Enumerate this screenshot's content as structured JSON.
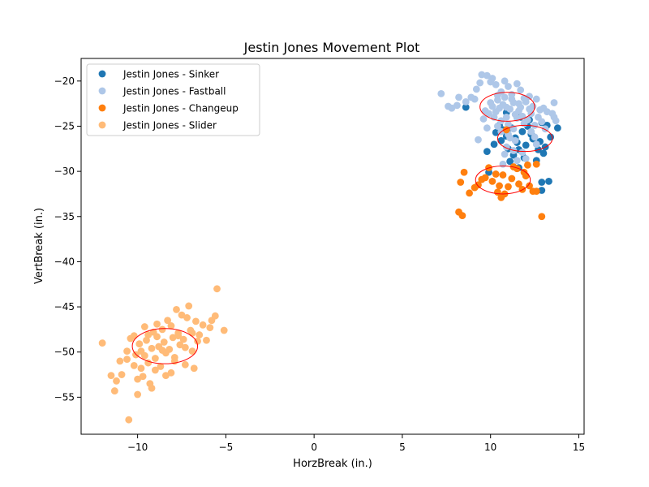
{
  "chart_data": {
    "type": "scatter",
    "title": "Jestin Jones Movement Plot",
    "xlabel": "HorzBreak (in.)",
    "ylabel": "VertBreak (in.)",
    "xlim": [
      -13.2,
      15.3
    ],
    "ylim": [
      -59.1,
      -17.5
    ],
    "xticks": [
      -10,
      -5,
      0,
      5,
      10,
      15
    ],
    "yticks": [
      -20,
      -25,
      -30,
      -35,
      -40,
      -45,
      -50,
      -55
    ],
    "grid": false,
    "legend_position": "top-left",
    "series": [
      {
        "name": "Jestin Jones - Sinker",
        "color": "#1f77b4",
        "points": [
          [
            11.2,
            -25.2
          ],
          [
            11.8,
            -25.6
          ],
          [
            12.1,
            -25.0
          ],
          [
            10.9,
            -26.1
          ],
          [
            11.5,
            -26.8
          ],
          [
            12.4,
            -26.4
          ],
          [
            11.0,
            -27.5
          ],
          [
            10.6,
            -26.6
          ],
          [
            12.0,
            -27.1
          ],
          [
            12.7,
            -27.6
          ],
          [
            11.3,
            -28.2
          ],
          [
            11.9,
            -28.5
          ],
          [
            13.1,
            -27.3
          ],
          [
            13.4,
            -26.2
          ],
          [
            13.8,
            -25.2
          ],
          [
            12.9,
            -24.6
          ],
          [
            13.2,
            -24.9
          ],
          [
            12.2,
            -24.3
          ],
          [
            11.7,
            -24.0
          ],
          [
            10.3,
            -25.7
          ],
          [
            9.8,
            -27.8
          ],
          [
            10.2,
            -27.0
          ],
          [
            11.6,
            -29.6
          ],
          [
            12.6,
            -28.8
          ],
          [
            11.1,
            -28.9
          ],
          [
            10.7,
            -25.4
          ],
          [
            12.3,
            -25.9
          ],
          [
            13.0,
            -28.0
          ],
          [
            11.4,
            -26.3
          ],
          [
            10.5,
            -24.9
          ],
          [
            13.3,
            -31.1
          ],
          [
            12.9,
            -31.2
          ],
          [
            12.9,
            -32.1
          ],
          [
            9.9,
            -30.1
          ],
          [
            8.6,
            -22.9
          ],
          [
            12.8,
            -26.7
          ],
          [
            10.9,
            -23.5
          ],
          [
            11.6,
            -27.6
          ]
        ]
      },
      {
        "name": "Jestin Jones - Fastball",
        "color": "#aec7e8",
        "points": [
          [
            7.2,
            -21.4
          ],
          [
            7.6,
            -22.8
          ],
          [
            7.8,
            -23.0
          ],
          [
            8.1,
            -22.7
          ],
          [
            8.6,
            -22.3
          ],
          [
            8.9,
            -21.8
          ],
          [
            9.2,
            -20.9
          ],
          [
            9.4,
            -20.2
          ],
          [
            9.5,
            -19.3
          ],
          [
            9.8,
            -19.4
          ],
          [
            10.0,
            -20.1
          ],
          [
            10.1,
            -19.7
          ],
          [
            10.3,
            -20.4
          ],
          [
            10.4,
            -21.6
          ],
          [
            10.6,
            -21.2
          ],
          [
            10.8,
            -20.0
          ],
          [
            11.0,
            -20.6
          ],
          [
            11.2,
            -21.5
          ],
          [
            11.3,
            -22.4
          ],
          [
            11.5,
            -20.3
          ],
          [
            11.7,
            -21.0
          ],
          [
            11.9,
            -21.9
          ],
          [
            12.0,
            -22.3
          ],
          [
            12.2,
            -21.7
          ],
          [
            12.4,
            -22.8
          ],
          [
            12.6,
            -22.0
          ],
          [
            12.8,
            -23.2
          ],
          [
            13.0,
            -23.0
          ],
          [
            13.2,
            -23.4
          ],
          [
            13.5,
            -23.6
          ],
          [
            13.7,
            -24.4
          ],
          [
            13.6,
            -24.0
          ],
          [
            13.6,
            -22.4
          ],
          [
            12.9,
            -24.5
          ],
          [
            12.5,
            -24.9
          ],
          [
            12.1,
            -24.3
          ],
          [
            11.8,
            -23.9
          ],
          [
            11.6,
            -23.3
          ],
          [
            11.4,
            -23.7
          ],
          [
            11.1,
            -23.1
          ],
          [
            10.9,
            -22.9
          ],
          [
            10.7,
            -22.6
          ],
          [
            10.5,
            -23.0
          ],
          [
            10.3,
            -23.4
          ],
          [
            10.1,
            -22.8
          ],
          [
            9.9,
            -23.6
          ],
          [
            9.7,
            -23.3
          ],
          [
            9.6,
            -24.2
          ],
          [
            10.2,
            -24.0
          ],
          [
            10.6,
            -24.4
          ],
          [
            11.0,
            -24.8
          ],
          [
            11.3,
            -25.3
          ],
          [
            11.5,
            -24.1
          ],
          [
            11.9,
            -24.7
          ],
          [
            12.3,
            -23.6
          ],
          [
            12.7,
            -24.0
          ],
          [
            10.8,
            -21.8
          ],
          [
            10.4,
            -22.1
          ],
          [
            11.2,
            -22.0
          ],
          [
            11.6,
            -22.5
          ],
          [
            10.0,
            -22.4
          ],
          [
            10.9,
            -24.0
          ],
          [
            11.7,
            -22.9
          ],
          [
            12.2,
            -23.1
          ],
          [
            10.6,
            -25.6
          ],
          [
            11.1,
            -26.3
          ],
          [
            11.4,
            -26.6
          ],
          [
            10.9,
            -27.3
          ],
          [
            11.8,
            -27.9
          ],
          [
            12.0,
            -28.6
          ],
          [
            11.3,
            -27.7
          ],
          [
            12.5,
            -26.2
          ],
          [
            10.7,
            -29.2
          ],
          [
            9.3,
            -26.5
          ],
          [
            10.8,
            -28.1
          ],
          [
            11.5,
            -28.8
          ],
          [
            8.2,
            -21.8
          ],
          [
            9.1,
            -22.0
          ],
          [
            13.1,
            -25.3
          ],
          [
            12.3,
            -25.6
          ],
          [
            11.0,
            -25.9
          ],
          [
            10.4,
            -25.0
          ],
          [
            9.8,
            -25.2
          ],
          [
            12.6,
            -27.0
          ]
        ]
      },
      {
        "name": "Jestin Jones - Changeup",
        "color": "#ff7f0e",
        "points": [
          [
            8.5,
            -30.1
          ],
          [
            8.3,
            -31.2
          ],
          [
            9.3,
            -31.5
          ],
          [
            9.7,
            -30.7
          ],
          [
            9.9,
            -29.6
          ],
          [
            10.3,
            -30.3
          ],
          [
            10.1,
            -31.1
          ],
          [
            10.5,
            -31.6
          ],
          [
            10.4,
            -32.3
          ],
          [
            10.8,
            -32.5
          ],
          [
            11.0,
            -31.7
          ],
          [
            11.2,
            -30.8
          ],
          [
            11.3,
            -29.5
          ],
          [
            11.5,
            -29.7
          ],
          [
            11.6,
            -31.4
          ],
          [
            11.8,
            -32.0
          ],
          [
            12.0,
            -30.5
          ],
          [
            12.1,
            -29.3
          ],
          [
            12.2,
            -31.6
          ],
          [
            12.4,
            -32.2
          ],
          [
            12.6,
            -29.2
          ],
          [
            9.5,
            -30.9
          ],
          [
            10.7,
            -30.4
          ],
          [
            8.8,
            -32.4
          ],
          [
            8.2,
            -34.5
          ],
          [
            8.4,
            -34.9
          ],
          [
            12.9,
            -35.0
          ],
          [
            12.6,
            -32.2
          ],
          [
            10.6,
            -32.9
          ],
          [
            10.9,
            -25.4
          ],
          [
            9.1,
            -31.8
          ],
          [
            11.9,
            -30.1
          ]
        ]
      },
      {
        "name": "Jestin Jones - Slider",
        "color": "#ffbb78",
        "points": [
          [
            -12.0,
            -49.0
          ],
          [
            -11.5,
            -52.6
          ],
          [
            -11.3,
            -54.3
          ],
          [
            -11.2,
            -53.2
          ],
          [
            -11.0,
            -51.0
          ],
          [
            -10.9,
            -52.5
          ],
          [
            -10.6,
            -49.9
          ],
          [
            -10.5,
            -57.5
          ],
          [
            -10.2,
            -48.2
          ],
          [
            -10.1,
            -50.3
          ],
          [
            -10.0,
            -53.0
          ],
          [
            -10.0,
            -54.7
          ],
          [
            -9.9,
            -49.1
          ],
          [
            -9.8,
            -51.8
          ],
          [
            -9.7,
            -52.7
          ],
          [
            -9.6,
            -50.4
          ],
          [
            -9.5,
            -48.7
          ],
          [
            -9.4,
            -51.2
          ],
          [
            -9.3,
            -53.5
          ],
          [
            -9.2,
            -49.6
          ],
          [
            -9.1,
            -47.8
          ],
          [
            -9.0,
            -50.7
          ],
          [
            -8.9,
            -48.3
          ],
          [
            -8.8,
            -49.4
          ],
          [
            -8.7,
            -51.6
          ],
          [
            -8.6,
            -47.5
          ],
          [
            -8.5,
            -48.9
          ],
          [
            -8.4,
            -50.1
          ],
          [
            -8.3,
            -46.5
          ],
          [
            -8.2,
            -49.7
          ],
          [
            -8.1,
            -47.1
          ],
          [
            -8.0,
            -48.4
          ],
          [
            -7.9,
            -51.0
          ],
          [
            -7.8,
            -45.3
          ],
          [
            -7.7,
            -47.9
          ],
          [
            -7.6,
            -49.2
          ],
          [
            -7.5,
            -45.9
          ],
          [
            -7.4,
            -48.6
          ],
          [
            -7.3,
            -51.4
          ],
          [
            -7.2,
            -46.2
          ],
          [
            -7.1,
            -44.9
          ],
          [
            -7.0,
            -47.6
          ],
          [
            -6.9,
            -49.9
          ],
          [
            -6.8,
            -51.8
          ],
          [
            -6.7,
            -46.6
          ],
          [
            -6.5,
            -48.1
          ],
          [
            -6.3,
            -47.0
          ],
          [
            -6.1,
            -48.7
          ],
          [
            -5.9,
            -47.3
          ],
          [
            -5.8,
            -46.5
          ],
          [
            -5.6,
            -46.0
          ],
          [
            -5.5,
            -43.0
          ],
          [
            -5.1,
            -47.6
          ],
          [
            -9.2,
            -54.0
          ],
          [
            -8.4,
            -52.6
          ],
          [
            -10.4,
            -48.5
          ],
          [
            -9.6,
            -47.2
          ],
          [
            -8.9,
            -46.9
          ],
          [
            -7.9,
            -50.6
          ],
          [
            -7.3,
            -49.5
          ],
          [
            -6.6,
            -48.8
          ],
          [
            -9.0,
            -52.0
          ],
          [
            -10.2,
            -51.5
          ],
          [
            -8.1,
            -52.3
          ],
          [
            -9.8,
            -49.9
          ],
          [
            -8.6,
            -49.8
          ],
          [
            -7.7,
            -48.2
          ],
          [
            -6.9,
            -47.9
          ],
          [
            -9.4,
            -48.1
          ],
          [
            -10.6,
            -50.8
          ]
        ]
      }
    ],
    "ellipses": [
      {
        "cx": 10.95,
        "cy": -22.85,
        "rx": 1.55,
        "ry": 1.6,
        "color": "#ff0000"
      },
      {
        "cx": 11.95,
        "cy": -26.35,
        "rx": 1.55,
        "ry": 1.45,
        "color": "#ff0000"
      },
      {
        "cx": 10.7,
        "cy": -30.95,
        "rx": 1.55,
        "ry": 1.55,
        "color": "#ff0000"
      },
      {
        "cx": -8.45,
        "cy": -49.35,
        "rx": 1.85,
        "ry": 1.95,
        "color": "#ff0000"
      }
    ]
  }
}
